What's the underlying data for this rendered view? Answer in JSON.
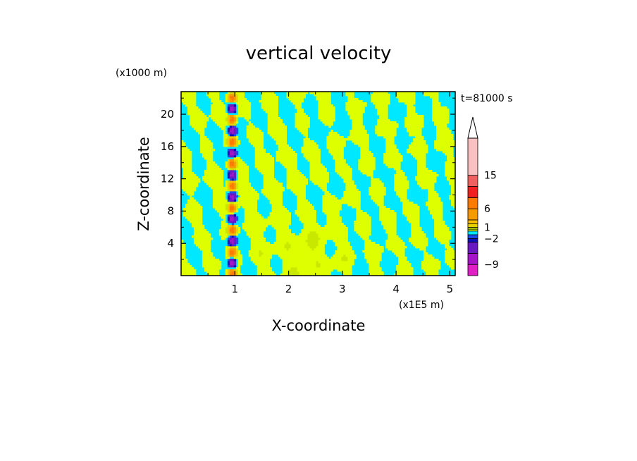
{
  "chart_data": {
    "type": "heatmap",
    "title": "vertical velocity",
    "xlabel": "X-coordinate",
    "ylabel": "Z-coordinate",
    "x_unit": "(x1E5 m)",
    "y_unit": "(x1000 m)",
    "time_label": "t=81000 s",
    "xlim": [
      0,
      5.1
    ],
    "ylim": [
      0,
      22.8
    ],
    "x_ticks": [
      1,
      2,
      3,
      4,
      5
    ],
    "y_ticks": [
      4,
      8,
      12,
      16,
      20
    ],
    "grid": false,
    "colorbar": {
      "placement": "right",
      "tick_labels": [
        {
          "text": "15",
          "value": 15
        },
        {
          "text": "6",
          "value": 6
        },
        {
          "text": "1",
          "value": 1
        },
        {
          "text": "−2",
          "value": -2
        },
        {
          "text": "−9",
          "value": -9
        }
      ],
      "levels": [
        {
          "lo": -12,
          "hi": -9,
          "color": "#e01fc4"
        },
        {
          "lo": -9,
          "hi": -6,
          "color": "#a514c8"
        },
        {
          "lo": -6,
          "hi": -3,
          "color": "#6a18c0"
        },
        {
          "lo": -3,
          "hi": -2,
          "color": "#1010b8"
        },
        {
          "lo": -2,
          "hi": -1,
          "color": "#1c4cf0"
        },
        {
          "lo": -1,
          "hi": 0,
          "color": "#00e8ff"
        },
        {
          "lo": 0,
          "hi": 0.5,
          "color": "#ddff00"
        },
        {
          "lo": 0.5,
          "hi": 1,
          "color": "#c8e800"
        },
        {
          "lo": 1,
          "hi": 2,
          "color": "#e8d000"
        },
        {
          "lo": 2,
          "hi": 3,
          "color": "#ffc000"
        },
        {
          "lo": 3,
          "hi": 6,
          "color": "#f59a00"
        },
        {
          "lo": 6,
          "hi": 9,
          "color": "#ff7a00"
        },
        {
          "lo": 9,
          "hi": 12,
          "color": "#ee2020"
        },
        {
          "lo": 12,
          "hi": 15,
          "color": "#f06060"
        },
        {
          "lo": 15,
          "hi": 25,
          "color": "#f8c0c0"
        }
      ]
    },
    "field_summary": "Alternating bands of small positive (about 0 to 0.5) and small negative (about -1 to 0) vertical velocity; strong localized updrafts and downdrafts near x = 0.8 to 1.1"
  }
}
